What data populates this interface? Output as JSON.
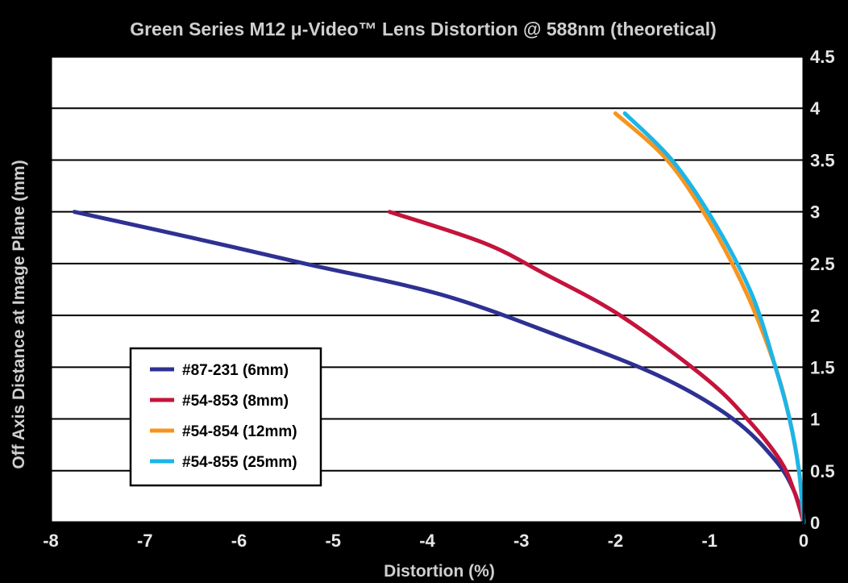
{
  "chart_data": {
    "type": "line",
    "title": "Green Series M12 μ-Video™ Lens Distortion @ 588nm (theoretical)",
    "xlabel": "Distortion (%)",
    "ylabel": "Off Axis Distance at Image Plane (mm)",
    "xlim": [
      -8,
      0
    ],
    "ylim": [
      0,
      4.5
    ],
    "x_ticks": [
      -8,
      -7,
      -6,
      -5,
      -4,
      -3,
      -2,
      -1,
      0
    ],
    "y_ticks": [
      0,
      0.5,
      1,
      1.5,
      2,
      2.5,
      3,
      3.5,
      4,
      4.5
    ],
    "y_axis_side": "right",
    "grid": "horizontal",
    "legend_position": "lower-left",
    "background": "#ffffff",
    "series": [
      {
        "name": "#87-231 (6mm)",
        "color": "#2e3192",
        "x": [
          0,
          -0.1,
          -0.3,
          -0.75,
          -1.5,
          -2.6,
          -3.85,
          -5.3,
          -6.5,
          -7.75
        ],
        "y": [
          0,
          0.3,
          0.6,
          1.0,
          1.4,
          1.8,
          2.2,
          2.5,
          2.75,
          3.0
        ]
      },
      {
        "name": "#54-853 (8mm)",
        "color": "#c4143c",
        "x": [
          0,
          -0.1,
          -0.25,
          -0.6,
          -1.05,
          -1.95,
          -2.75,
          -3.4,
          -4.4
        ],
        "y": [
          0,
          0.3,
          0.6,
          1.0,
          1.4,
          2.0,
          2.4,
          2.7,
          3.0
        ]
      },
      {
        "name": "#54-854 (12mm)",
        "color": "#f7941d",
        "x": [
          0,
          -0.05,
          -0.15,
          -0.3,
          -0.6,
          -1.0,
          -1.45,
          -2.0
        ],
        "y": [
          0,
          0.5,
          1.0,
          1.5,
          2.2,
          2.9,
          3.5,
          3.95
        ]
      },
      {
        "name": "#54-855 (25mm)",
        "color": "#1cb5e8",
        "x": [
          0,
          -0.05,
          -0.15,
          -0.3,
          -0.55,
          -0.95,
          -1.4,
          -1.9
        ],
        "y": [
          0,
          0.5,
          1.0,
          1.5,
          2.2,
          2.9,
          3.5,
          3.95
        ]
      }
    ]
  }
}
